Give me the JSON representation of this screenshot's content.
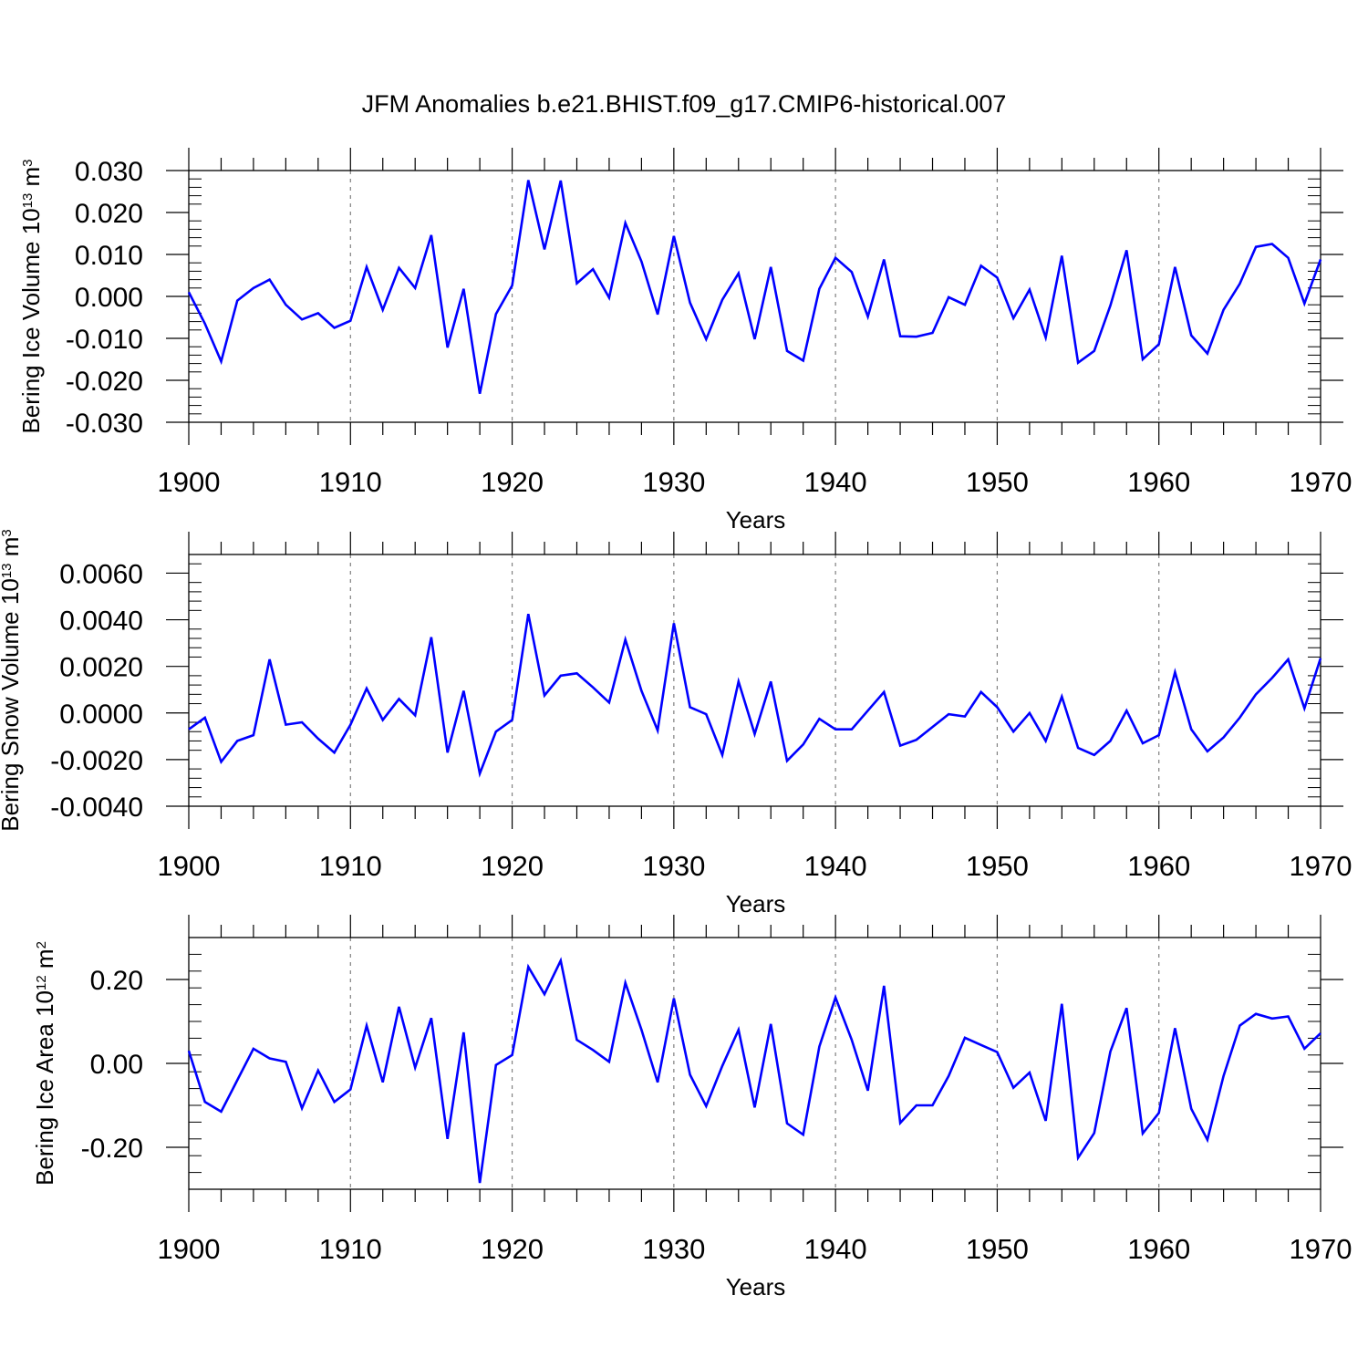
{
  "title": "JFM Anomalies b.e21.BHIST.f09_g17.CMIP6-historical.007",
  "colors": {
    "series": "#0000ff",
    "axis": "#000000",
    "grid": "#808080"
  },
  "chart_data": [
    {
      "type": "line",
      "name": "ice-volume",
      "ylabel": {
        "text": "Bering Ice Volume 10",
        "sup": "13",
        "unit": " m",
        "unit_sup": "3"
      },
      "xlabel": "Years",
      "xlim": [
        1900,
        1970
      ],
      "ylim": [
        -0.03,
        0.03
      ],
      "yticks": [
        -0.03,
        -0.02,
        -0.01,
        0.0,
        0.01,
        0.02,
        0.03
      ],
      "ytick_labels": [
        "-0.030",
        "-0.020",
        "-0.010",
        "0.000",
        "0.010",
        "0.020",
        "0.030"
      ],
      "xticks": [
        1900,
        1910,
        1920,
        1930,
        1940,
        1950,
        1960,
        1970
      ],
      "xtick_labels": [
        "1900",
        "1910",
        "1920",
        "1930",
        "1940",
        "1950",
        "1960",
        "1970"
      ],
      "grid": "vertical dashed at decades",
      "x": [
        1900,
        1901,
        1902,
        1903,
        1904,
        1905,
        1906,
        1907,
        1908,
        1909,
        1910,
        1911,
        1912,
        1913,
        1914,
        1915,
        1916,
        1917,
        1918,
        1919,
        1920,
        1921,
        1922,
        1923,
        1924,
        1925,
        1926,
        1927,
        1928,
        1929,
        1930,
        1931,
        1932,
        1933,
        1934,
        1935,
        1936,
        1937,
        1938,
        1939,
        1940,
        1941,
        1942,
        1943,
        1944,
        1945,
        1946,
        1947,
        1948,
        1949,
        1950,
        1951,
        1952,
        1953,
        1954,
        1955,
        1956,
        1957,
        1958,
        1959,
        1960,
        1961,
        1962,
        1963,
        1964,
        1965,
        1966,
        1967,
        1968,
        1969,
        1970
      ],
      "values": [
        0.001,
        -0.0065,
        -0.0155,
        -0.001,
        0.002,
        0.004,
        -0.002,
        -0.0055,
        -0.004,
        -0.0075,
        -0.0058,
        0.007,
        -0.0032,
        0.0068,
        0.002,
        0.0146,
        -0.0122,
        0.0018,
        -0.0232,
        -0.0042,
        0.0026,
        0.0277,
        0.0112,
        0.0276,
        0.0031,
        0.0065,
        -0.0003,
        0.0175,
        0.0083,
        -0.0043,
        0.0144,
        -0.0015,
        -0.0102,
        -0.0008,
        0.0055,
        -0.0102,
        0.007,
        -0.013,
        -0.0153,
        0.0018,
        0.0092,
        0.0058,
        -0.0048,
        0.0088,
        -0.0095,
        -0.0096,
        -0.0087,
        -0.0002,
        -0.002,
        0.0073,
        0.0045,
        -0.0052,
        0.0016,
        -0.0098,
        0.0097,
        -0.0158,
        -0.013,
        -0.0022,
        0.011,
        -0.015,
        -0.0114,
        0.007,
        -0.0093,
        -0.0136,
        -0.0032,
        0.003,
        0.0118,
        0.0125,
        0.0092,
        -0.0017,
        0.0088
      ]
    },
    {
      "type": "line",
      "name": "snow-volume",
      "ylabel": {
        "text": "Bering Snow Volume 10",
        "sup": "13",
        "unit": " m",
        "unit_sup": "3"
      },
      "xlabel": "Years",
      "xlim": [
        1900,
        1970
      ],
      "ylim": [
        -0.004,
        0.0068
      ],
      "yticks": [
        -0.004,
        -0.002,
        0.0,
        0.002,
        0.004,
        0.006
      ],
      "ytick_labels": [
        "-0.0040",
        "-0.0020",
        "0.0000",
        "0.0020",
        "0.0040",
        "0.0060"
      ],
      "xticks": [
        1900,
        1910,
        1920,
        1930,
        1940,
        1950,
        1960,
        1970
      ],
      "xtick_labels": [
        "1900",
        "1910",
        "1920",
        "1930",
        "1940",
        "1950",
        "1960",
        "1970"
      ],
      "grid": "vertical dashed at decades",
      "x": [
        1900,
        1901,
        1902,
        1903,
        1904,
        1905,
        1906,
        1907,
        1908,
        1909,
        1910,
        1911,
        1912,
        1913,
        1914,
        1915,
        1916,
        1917,
        1918,
        1919,
        1920,
        1921,
        1922,
        1923,
        1924,
        1925,
        1926,
        1927,
        1928,
        1929,
        1930,
        1931,
        1932,
        1933,
        1934,
        1935,
        1936,
        1937,
        1938,
        1939,
        1940,
        1941,
        1942,
        1943,
        1944,
        1945,
        1946,
        1947,
        1948,
        1949,
        1950,
        1951,
        1952,
        1953,
        1954,
        1955,
        1956,
        1957,
        1958,
        1959,
        1960,
        1961,
        1962,
        1963,
        1964,
        1965,
        1966,
        1967,
        1968,
        1969,
        1970
      ],
      "values": [
        -0.0007,
        -0.0002,
        -0.0021,
        -0.0012,
        -0.00095,
        0.0023,
        -0.0005,
        -0.0004,
        -0.0011,
        -0.0017,
        -0.0005,
        0.00105,
        -0.0003,
        0.0006,
        -0.0001,
        0.00325,
        -0.0017,
        0.00095,
        -0.0026,
        -0.0008,
        -0.0003,
        0.00425,
        0.00075,
        0.0016,
        0.0017,
        0.0011,
        0.00045,
        0.00315,
        0.00095,
        -0.00075,
        0.00385,
        0.00025,
        -5e-05,
        -0.0018,
        0.00135,
        -0.0009,
        0.00135,
        -0.00205,
        -0.00135,
        -0.00025,
        -0.0007,
        -0.0007,
        0.0001,
        0.0009,
        -0.0014,
        -0.00115,
        -0.0006,
        -5e-05,
        -0.00015,
        0.0009,
        0.00025,
        -0.0008,
        0.0,
        -0.0012,
        0.0007,
        -0.0015,
        -0.0018,
        -0.0012,
        0.0001,
        -0.0013,
        -0.00095,
        0.00175,
        -0.0007,
        -0.00165,
        -0.00105,
        -0.0002,
        0.0008,
        0.0015,
        0.0023,
        0.0002,
        0.00235
      ]
    },
    {
      "type": "line",
      "name": "ice-area",
      "ylabel": {
        "text": "Bering Ice Area 10",
        "sup": "12",
        "unit": " m",
        "unit_sup": "2"
      },
      "xlabel": "Years",
      "xlim": [
        1900,
        1970
      ],
      "ylim": [
        -0.3,
        0.3
      ],
      "yticks": [
        -0.2,
        0.0,
        0.2
      ],
      "ytick_labels": [
        "-0.20",
        "0.00",
        "0.20"
      ],
      "xticks": [
        1900,
        1910,
        1920,
        1930,
        1940,
        1950,
        1960,
        1970
      ],
      "xtick_labels": [
        "1900",
        "1910",
        "1920",
        "1930",
        "1940",
        "1950",
        "1960",
        "1970"
      ],
      "grid": "vertical dashed at decades",
      "x": [
        1900,
        1901,
        1902,
        1903,
        1904,
        1905,
        1906,
        1907,
        1908,
        1909,
        1910,
        1911,
        1912,
        1913,
        1914,
        1915,
        1916,
        1917,
        1918,
        1919,
        1920,
        1921,
        1922,
        1923,
        1924,
        1925,
        1926,
        1927,
        1928,
        1929,
        1930,
        1931,
        1932,
        1933,
        1934,
        1935,
        1936,
        1937,
        1938,
        1939,
        1940,
        1941,
        1942,
        1943,
        1944,
        1945,
        1946,
        1947,
        1948,
        1949,
        1950,
        1951,
        1952,
        1953,
        1954,
        1955,
        1956,
        1957,
        1958,
        1959,
        1960,
        1961,
        1962,
        1963,
        1964,
        1965,
        1966,
        1967,
        1968,
        1969,
        1970
      ],
      "values": [
        0.03,
        -0.092,
        -0.115,
        -0.04,
        0.035,
        0.012,
        0.004,
        -0.107,
        -0.017,
        -0.092,
        -0.062,
        0.09,
        -0.045,
        0.135,
        -0.01,
        0.108,
        -0.18,
        0.074,
        -0.285,
        -0.004,
        0.02,
        0.23,
        0.165,
        0.245,
        0.056,
        0.032,
        0.004,
        0.192,
        0.08,
        -0.045,
        0.155,
        -0.027,
        -0.102,
        -0.006,
        0.08,
        -0.105,
        0.094,
        -0.143,
        -0.17,
        0.04,
        0.157,
        0.056,
        -0.065,
        0.185,
        -0.142,
        -0.1,
        -0.1,
        -0.03,
        0.061,
        0.044,
        0.027,
        -0.058,
        -0.022,
        -0.137,
        0.142,
        -0.225,
        -0.166,
        0.028,
        0.132,
        -0.167,
        -0.118,
        0.084,
        -0.108,
        -0.182,
        -0.03,
        0.09,
        0.118,
        0.107,
        0.112,
        0.035,
        0.072
      ]
    }
  ]
}
